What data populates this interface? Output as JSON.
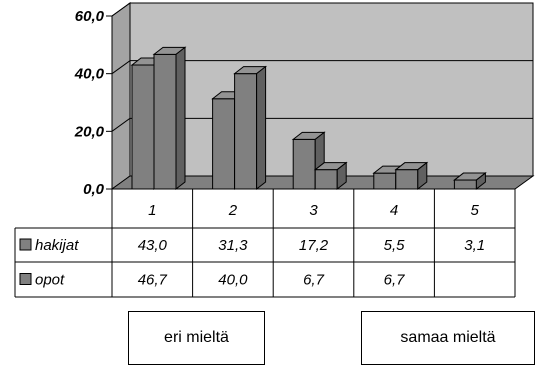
{
  "chart_data": {
    "type": "bar",
    "categories": [
      "1",
      "2",
      "3",
      "4",
      "5"
    ],
    "series": [
      {
        "name": "hakijat",
        "values": [
          43.0,
          31.3,
          17.2,
          5.5,
          3.1
        ],
        "labels": [
          "43,0",
          "31,3",
          "17,2",
          "5,5",
          "3,1"
        ],
        "color": "#808080"
      },
      {
        "name": "opot",
        "values": [
          46.7,
          40.0,
          6.7,
          6.7,
          null
        ],
        "labels": [
          "46,7",
          "40,0",
          "6,7",
          "6,7",
          ""
        ],
        "color": "#808080"
      }
    ],
    "ylim": [
      0,
      60
    ],
    "yticks": [
      0,
      20,
      40,
      60
    ],
    "ytick_labels": [
      "0,0",
      "20,0",
      "40,0",
      "60,0"
    ],
    "grid": true,
    "data_table": true,
    "wall_color": "#c0c0c0",
    "floor_color": "#808080"
  },
  "annotations": {
    "left": "eri mieltä",
    "right": "samaa mieltä"
  }
}
